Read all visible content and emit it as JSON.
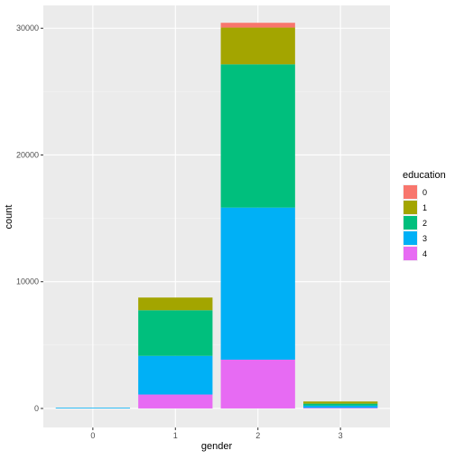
{
  "chart_data": {
    "type": "bar",
    "stacked": true,
    "xlabel": "gender",
    "ylabel": "count",
    "categories": [
      "0",
      "1",
      "2",
      "3"
    ],
    "ylim": [
      -1500,
      31800
    ],
    "yticks": [
      0,
      10000,
      20000,
      30000
    ],
    "ytick_labels": [
      "0",
      "10000",
      "20000",
      "30000"
    ],
    "grid": true,
    "legend": {
      "title": "education",
      "position": "right",
      "entries": [
        "0",
        "1",
        "2",
        "3",
        "4"
      ]
    },
    "series": [
      {
        "name": "0",
        "color": "#F8766D",
        "values": [
          0,
          0,
          380,
          0
        ]
      },
      {
        "name": "1",
        "color": "#A3A500",
        "values": [
          0,
          1000,
          2900,
          170
        ]
      },
      {
        "name": "2",
        "color": "#00BF7D",
        "values": [
          0,
          3600,
          11300,
          160
        ]
      },
      {
        "name": "3",
        "color": "#00B0F6",
        "values": [
          30,
          3050,
          12000,
          170
        ]
      },
      {
        "name": "4",
        "color": "#E76BF3",
        "values": [
          0,
          1100,
          3850,
          50
        ]
      }
    ]
  }
}
